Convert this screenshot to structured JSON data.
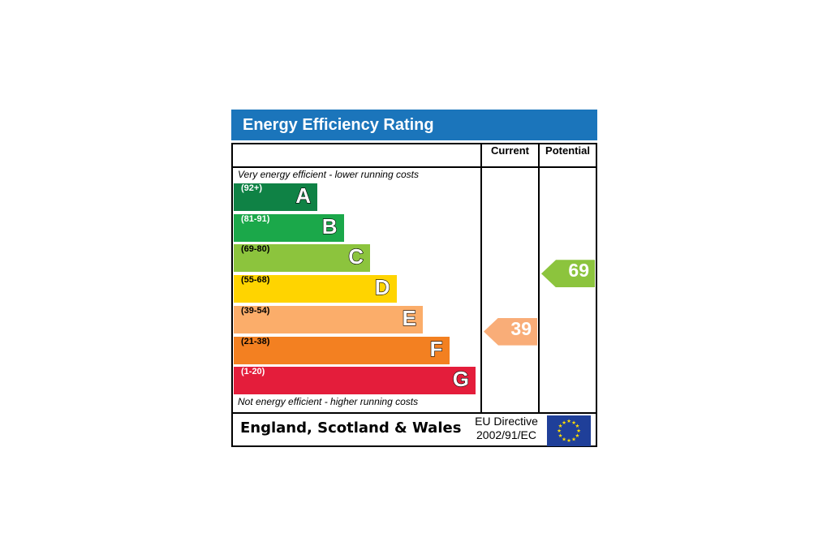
{
  "chart_data": {
    "type": "bar",
    "title": "Energy Efficiency Rating",
    "columns": [
      "Current",
      "Potential"
    ],
    "top_note": "Very energy efficient - lower running costs",
    "bottom_note": "Not energy efficient - higher running costs",
    "bands": [
      {
        "letter": "A",
        "range": "(92+)",
        "min": 92,
        "max": 100,
        "color": "#0f8245"
      },
      {
        "letter": "B",
        "range": "(81-91)",
        "min": 81,
        "max": 91,
        "color": "#1ba84a"
      },
      {
        "letter": "C",
        "range": "(69-80)",
        "min": 69,
        "max": 80,
        "color": "#8cc43d"
      },
      {
        "letter": "D",
        "range": "(55-68)",
        "min": 55,
        "max": 68,
        "color": "#ffd400"
      },
      {
        "letter": "E",
        "range": "(39-54)",
        "min": 39,
        "max": 54,
        "color": "#fbad6a"
      },
      {
        "letter": "F",
        "range": "(21-38)",
        "min": 21,
        "max": 38,
        "color": "#f38021"
      },
      {
        "letter": "G",
        "range": "(1-20)",
        "min": 1,
        "max": 20,
        "color": "#e41d3b"
      }
    ],
    "current": {
      "value": 39,
      "label": "39",
      "band": "E",
      "color": "#f9ad78"
    },
    "potential": {
      "value": 69,
      "label": "69",
      "band": "C",
      "color": "#8cc43d"
    }
  },
  "footer": {
    "region": "England, Scotland & Wales",
    "directive_line1": "EU Directive",
    "directive_line2": "2002/91/EC"
  },
  "flag": {
    "icon": "eu-flag-icon",
    "background": "#1f3f99",
    "stars": "#ffde00"
  }
}
